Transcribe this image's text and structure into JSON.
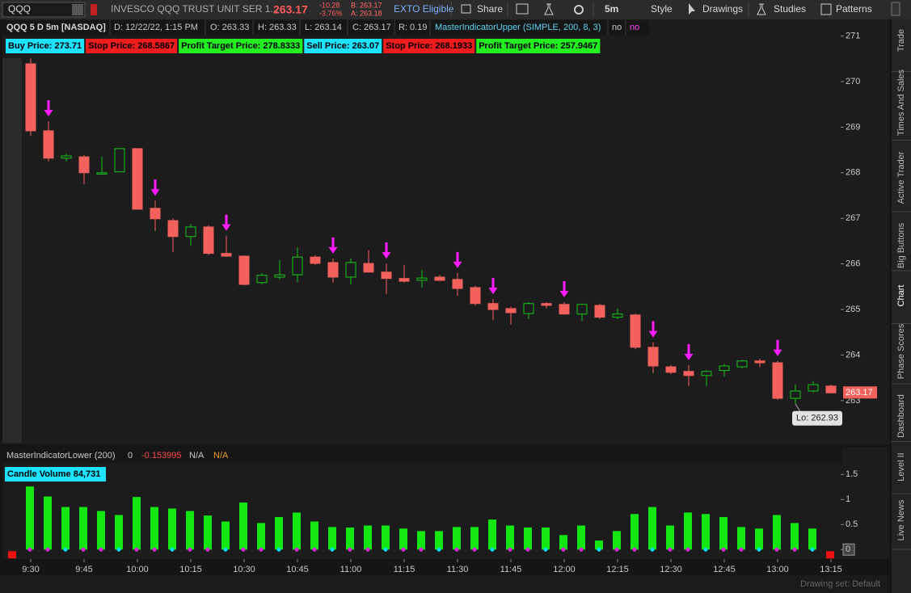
{
  "toolbar": {
    "symbol": "QQQ",
    "description": "INVESCO QQQ TRUST UNIT SER 1...",
    "last": "263.17",
    "change": "-10.28",
    "change_pct": "-3.76%",
    "bid": "B: 263.17",
    "ask": "A: 263.18",
    "exto": "EXTO Eligible",
    "buttons": [
      "Share",
      "5m",
      "Style",
      "Drawings",
      "Studies",
      "Patterns"
    ]
  },
  "info_bar": {
    "symbol": "QQQ 5 D 5m [NASDAQ]",
    "date": "D: 12/22/22, 1:15 PM",
    "open": "O: 263.33",
    "high": "H: 263.33",
    "low": "L: 263.14",
    "close": "C: 263.17",
    "range": "R: 0.19",
    "study": "MasterIndicatorUpper (SIMPLE, 200, 8, 3)",
    "flags": [
      "no",
      "no"
    ]
  },
  "order_labels": [
    {
      "text": "Buy Price: 273.71",
      "color": "#1ee3ff"
    },
    {
      "text": "Stop Price: 268.5867",
      "color": "#ee1c1c"
    },
    {
      "text": "Profit Target Price: 278.8333",
      "color": "#22ee22"
    },
    {
      "text": "Sell Price: 263.07",
      "color": "#1ee3ff"
    },
    {
      "text": "Stop Price: 268.1933",
      "color": "#ee1c1c"
    },
    {
      "text": "Profit Target Price: 257.9467",
      "color": "#22ee22"
    }
  ],
  "lower_study": {
    "name": "MasterIndicatorLower (200)",
    "values": [
      "0",
      "-0.153995",
      "N/A",
      "N/A"
    ]
  },
  "side_tabs": [
    "Trade",
    "Times And Sales",
    "Active Trader",
    "Big Buttons",
    "Chart",
    "Phase Scores",
    "Dashboard",
    "Level II",
    "Live News"
  ],
  "footer": {
    "drawing_set": "Drawing set: Default"
  },
  "chart_data": {
    "type": "candlestick",
    "categories": [
      "9:30",
      null,
      null,
      "9:45",
      null,
      null,
      "10:00",
      null,
      null,
      "10:15",
      null,
      null,
      "10:30",
      null,
      null,
      "10:45",
      null,
      null,
      "11:00",
      null,
      null,
      "11:15",
      null,
      null,
      "11:30",
      null,
      null,
      "11:45",
      null,
      null,
      "12:00",
      null,
      null,
      "12:15",
      null,
      null,
      "12:30",
      null,
      null,
      "12:45",
      null,
      null,
      "13:00",
      null,
      null,
      "13:15"
    ],
    "open": [
      270.39,
      268.92,
      268.32,
      268.35,
      267.97,
      268.02,
      268.53,
      267.22,
      266.95,
      266.6,
      266.81,
      266.23,
      266.17,
      265.59,
      265.71,
      265.76,
      266.15,
      266.03,
      265.71,
      266.01,
      265.82,
      265.68,
      265.64,
      265.71,
      265.66,
      265.48,
      265.13,
      265.02,
      264.91,
      265.13,
      265.11,
      264.9,
      265.09,
      264.83,
      264.88,
      264.17,
      263.74,
      263.64,
      263.55,
      263.66,
      263.74,
      263.87,
      263.83,
      263.05,
      263.21,
      263.32
    ],
    "high": [
      270.51,
      269.13,
      268.42,
      268.39,
      268.35,
      268.53,
      268.53,
      267.39,
      267.0,
      266.88,
      266.85,
      266.62,
      266.19,
      265.8,
      266.08,
      266.37,
      266.19,
      266.12,
      266.12,
      266.3,
      266.01,
      265.98,
      265.87,
      265.76,
      265.8,
      265.52,
      265.23,
      265.06,
      265.16,
      265.16,
      265.16,
      265.13,
      265.13,
      265.02,
      264.91,
      264.28,
      263.78,
      263.78,
      263.67,
      263.8,
      263.89,
      263.92,
      263.87,
      263.35,
      263.43,
      263.35
    ],
    "low": [
      268.81,
      268.25,
      268.25,
      267.75,
      267.96,
      268.02,
      267.2,
      266.72,
      266.26,
      266.4,
      266.19,
      266.15,
      265.53,
      265.55,
      265.66,
      265.59,
      265.98,
      265.59,
      265.55,
      265.82,
      265.34,
      265.59,
      265.48,
      265.62,
      265.3,
      265.09,
      264.77,
      264.67,
      264.79,
      265.02,
      264.88,
      264.74,
      264.79,
      264.79,
      264.13,
      263.6,
      263.58,
      263.32,
      263.32,
      263.53,
      263.71,
      263.73,
      263.02,
      262.93,
      263.18,
      263.16
    ],
    "close": [
      268.92,
      268.32,
      268.37,
      268.0,
      268.0,
      268.53,
      267.2,
      266.99,
      266.6,
      266.81,
      266.23,
      266.17,
      265.55,
      265.75,
      265.76,
      266.15,
      266.01,
      265.71,
      266.03,
      265.82,
      265.68,
      265.62,
      265.69,
      265.64,
      265.46,
      265.13,
      265.0,
      264.93,
      265.13,
      265.09,
      264.9,
      265.11,
      264.83,
      264.9,
      264.17,
      263.76,
      263.62,
      263.55,
      263.64,
      263.76,
      263.87,
      263.83,
      263.05,
      263.21,
      263.35,
      263.17
    ],
    "up_color": "#19c419",
    "down_color": "#f2615c",
    "ylim": [
      262.04,
      271.33
    ],
    "yticks": [
      263,
      264,
      265,
      266,
      267,
      268,
      269,
      270,
      271
    ],
    "last_price_label": "263.17",
    "low_label": "Lo: 262.93",
    "signals": [
      1,
      7,
      11,
      17,
      20,
      24,
      26,
      30,
      35,
      37,
      42
    ],
    "signal_color": "#ff1cff",
    "volume": {
      "title": "Candle Volume 84,731",
      "color": "#14e614",
      "values": [
        1.26,
        1.06,
        0.85,
        0.85,
        0.77,
        0.69,
        1.05,
        0.85,
        0.82,
        0.77,
        0.68,
        0.56,
        0.94,
        0.53,
        0.65,
        0.74,
        0.56,
        0.45,
        0.44,
        0.48,
        0.48,
        0.42,
        0.37,
        0.37,
        0.45,
        0.45,
        0.6,
        0.48,
        0.44,
        0.44,
        0.29,
        0.48,
        0.18,
        0.37,
        0.71,
        0.85,
        0.48,
        0.74,
        0.71,
        0.65,
        0.45,
        0.42,
        0.69,
        0.53,
        0.42,
        null
      ],
      "ylim": [
        -0.19,
        1.65
      ],
      "yticks": [
        0,
        0.5,
        1,
        1.5
      ]
    }
  }
}
